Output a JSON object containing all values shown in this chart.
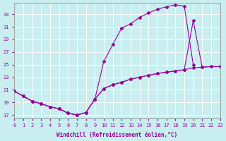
{
  "xlabel": "Windchill (Refroidissement éolien,°C)",
  "bg_color": "#c8eef0",
  "line_color": "#990099",
  "grid_color": "#ffffff",
  "xlim": [
    0,
    23
  ],
  "ylim": [
    16.5,
    34.8
  ],
  "xticks": [
    0,
    1,
    2,
    3,
    4,
    5,
    6,
    7,
    8,
    9,
    10,
    11,
    12,
    13,
    14,
    15,
    16,
    17,
    18,
    19,
    20,
    21,
    22,
    23
  ],
  "yticks": [
    17,
    19,
    21,
    23,
    25,
    27,
    29,
    31,
    33
  ],
  "line1_x": [
    0,
    1,
    2,
    3,
    4,
    5,
    6,
    7,
    8,
    9,
    10,
    11,
    12,
    13,
    14,
    15,
    16,
    17,
    18,
    19,
    20
  ],
  "line1_y": [
    20.8,
    20.0,
    19.2,
    18.8,
    18.3,
    18.0,
    17.3,
    17.0,
    17.4,
    19.5,
    25.5,
    28.2,
    30.8,
    31.5,
    32.5,
    33.2,
    33.8,
    34.2,
    34.5,
    34.3,
    25.0
  ],
  "line2_x": [
    0,
    1,
    2,
    3,
    4,
    5,
    6,
    7,
    8,
    9,
    10,
    11,
    12,
    13,
    14,
    15,
    16,
    17,
    18,
    19,
    20,
    21,
    22,
    23
  ],
  "line2_y": [
    20.8,
    20.0,
    19.2,
    18.8,
    18.3,
    18.0,
    17.3,
    17.0,
    17.4,
    19.5,
    21.2,
    21.8,
    22.2,
    22.7,
    23.0,
    23.3,
    23.6,
    23.8,
    24.0,
    24.2,
    24.5,
    24.6,
    24.7,
    24.7
  ],
  "line3_x": [
    0,
    1,
    2,
    3,
    4,
    5,
    6,
    7,
    8,
    9,
    10,
    11,
    12,
    13,
    14,
    15,
    16,
    17,
    18,
    19,
    20,
    21,
    22,
    23
  ],
  "line3_y": [
    20.8,
    20.0,
    19.2,
    18.8,
    18.3,
    18.0,
    17.3,
    17.0,
    17.4,
    19.5,
    21.2,
    21.8,
    22.2,
    22.7,
    23.0,
    23.3,
    23.6,
    23.8,
    24.0,
    24.2,
    32.0,
    24.6,
    24.7,
    24.7
  ]
}
